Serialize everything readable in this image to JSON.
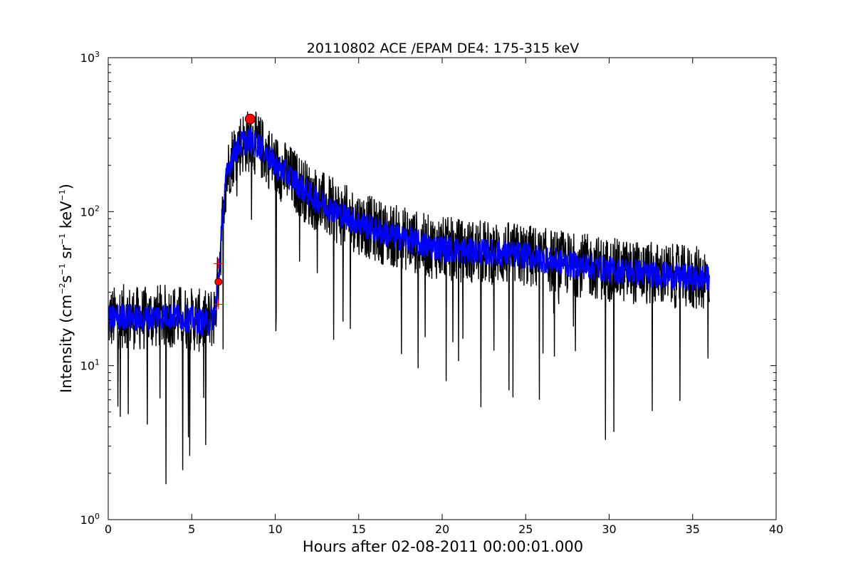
{
  "chart_data": {
    "type": "line",
    "title": "20110802 ACE /EPAM DE4: 175-315 keV",
    "xlabel": "Hours after 02-08-2011 00:00:01.000",
    "ylabel": {
      "prefix": "Intensity (cm",
      "sup1": "−2",
      "mid1": "s",
      "sup2": "−1",
      "mid2": " sr",
      "sup3": "−1",
      "mid3": " keV",
      "sup4": "−1",
      "suffix": ")"
    },
    "xlim": [
      0,
      40
    ],
    "ylim": [
      1,
      1000
    ],
    "yscale": "log",
    "x_ticks": [
      "0",
      "5",
      "10",
      "15",
      "20",
      "25",
      "30",
      "35",
      "40"
    ],
    "y_ticks": [
      {
        "base": "10",
        "exp": "0"
      },
      {
        "base": "10",
        "exp": "1"
      },
      {
        "base": "10",
        "exp": "2"
      },
      {
        "base": "10",
        "exp": "3"
      }
    ],
    "grid": false,
    "series": [
      {
        "color": "#000000",
        "role": "raw",
        "envelope_x": [
          0,
          1,
          2,
          3,
          4,
          5,
          6,
          6.4,
          6.6,
          6.8,
          7,
          7.3,
          7.6,
          8,
          8.5,
          9,
          9.5,
          10,
          11,
          12,
          13,
          14,
          15,
          16,
          17,
          18,
          19,
          20,
          21,
          22,
          23,
          24,
          25,
          26,
          27,
          28,
          29,
          30,
          31,
          32,
          33,
          34,
          35,
          36
        ],
        "envelope_y": [
          20,
          21,
          20,
          21,
          21,
          20,
          19,
          22,
          38,
          75,
          150,
          210,
          250,
          280,
          290,
          270,
          235,
          200,
          165,
          130,
          110,
          95,
          85,
          76,
          70,
          66,
          60,
          58,
          56,
          55,
          54,
          53,
          52,
          49,
          47,
          45,
          44,
          42,
          41,
          40,
          39,
          38,
          37,
          37
        ]
      },
      {
        "color": "#0000ff",
        "role": "smoothed",
        "envelope_x": [
          0,
          1,
          2,
          3,
          4,
          5,
          6,
          6.4,
          6.6,
          6.8,
          7,
          7.3,
          7.6,
          8,
          8.5,
          9,
          9.5,
          10,
          11,
          12,
          13,
          14,
          15,
          16,
          17,
          18,
          19,
          20,
          21,
          22,
          23,
          24,
          25,
          26,
          27,
          28,
          29,
          30,
          31,
          32,
          33,
          34,
          35,
          36
        ],
        "envelope_y": [
          20,
          21,
          20,
          21,
          21,
          20,
          19,
          22,
          38,
          75,
          150,
          210,
          250,
          280,
          290,
          270,
          235,
          200,
          165,
          130,
          110,
          95,
          85,
          76,
          70,
          66,
          60,
          58,
          56,
          55,
          54,
          53,
          52,
          49,
          47,
          45,
          44,
          42,
          41,
          40,
          39,
          38,
          37,
          37
        ]
      }
    ],
    "markers": [
      {
        "kind": "onset-dot",
        "x": 6.6,
        "y": 35,
        "color": "#ff0000"
      },
      {
        "kind": "peak-dot",
        "x": 8.5,
        "y": 400,
        "color": "#ff0000"
      },
      {
        "kind": "plus",
        "x": 6.6,
        "y": 46,
        "color": "#ff0000"
      },
      {
        "kind": "plus",
        "x": 6.6,
        "y": 25,
        "color": "#ff0000"
      }
    ]
  }
}
